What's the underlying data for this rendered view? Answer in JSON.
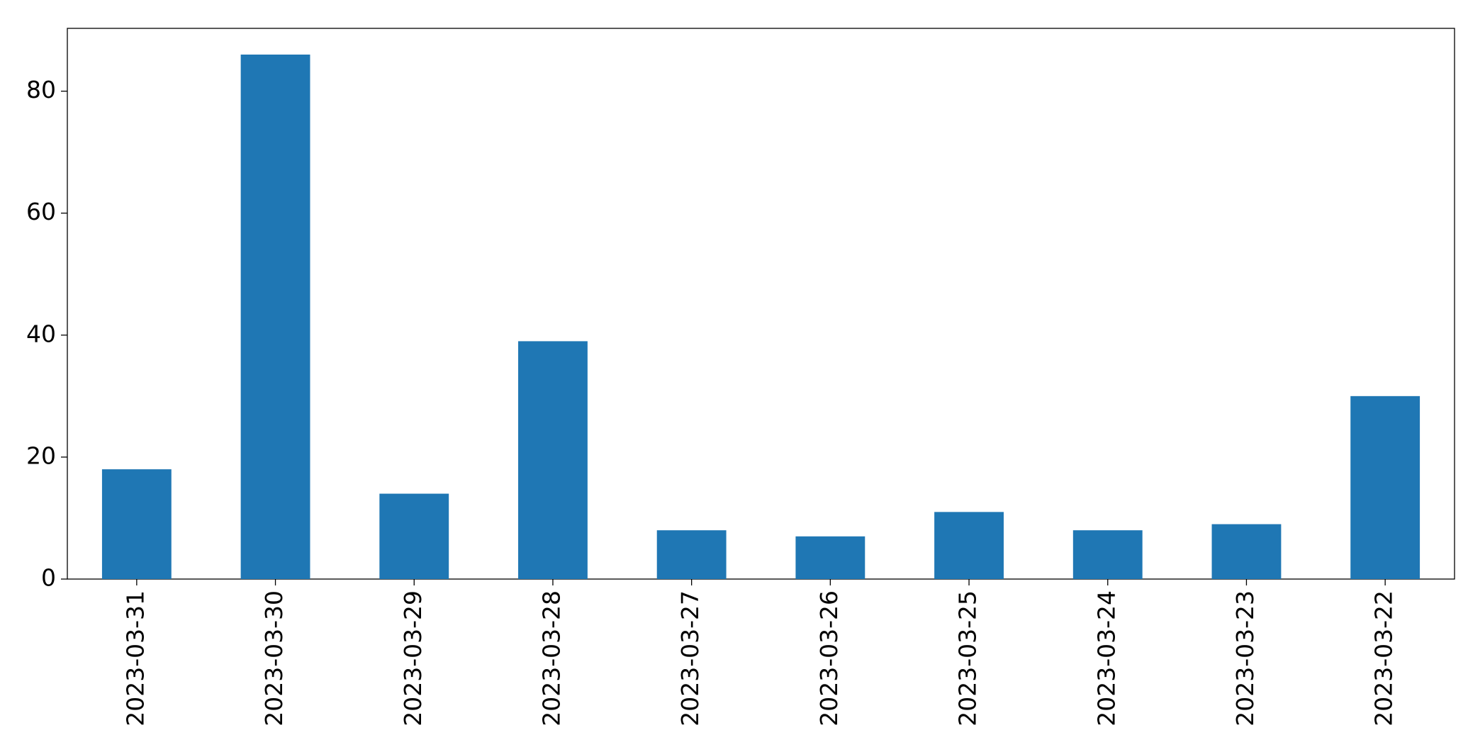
{
  "chart_data": {
    "type": "bar",
    "categories": [
      "2023-03-31",
      "2023-03-30",
      "2023-03-29",
      "2023-03-28",
      "2023-03-27",
      "2023-03-26",
      "2023-03-25",
      "2023-03-24",
      "2023-03-23",
      "2023-03-22"
    ],
    "values": [
      18,
      86,
      14,
      39,
      8,
      7,
      11,
      8,
      9,
      30
    ],
    "color": "#1f77b4",
    "ylim": [
      0,
      90.3
    ],
    "yticks": [
      0,
      20,
      40,
      60,
      80
    ],
    "grid": false
  }
}
